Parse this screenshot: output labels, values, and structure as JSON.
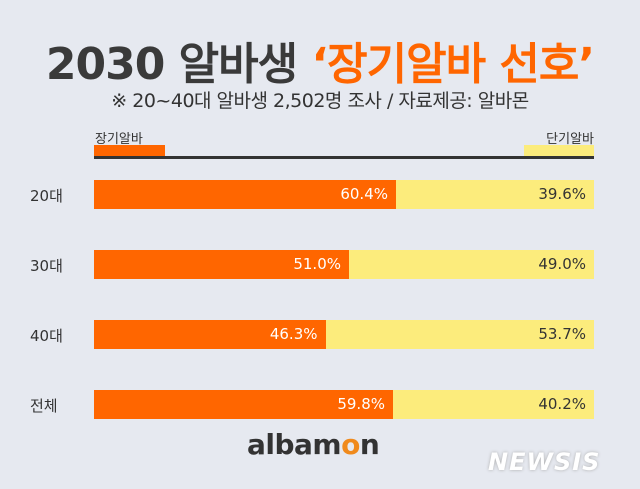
{
  "header": {
    "title_main": "2030 알바생 ",
    "title_highlight": "‘장기알바 선호’",
    "subtitle": "※ 20~40대 알바생 2,502명 조사 / 자료제공: 알바몬"
  },
  "chart_data": {
    "type": "bar",
    "stacked": true,
    "orientation": "horizontal",
    "categories": [
      "20대",
      "30대",
      "40대",
      "전체"
    ],
    "series": [
      {
        "name": "장기알바",
        "color": "#ff6600",
        "values": [
          60.4,
          51.0,
          46.3,
          59.8
        ],
        "labels": [
          "60.4%",
          "51.0%",
          "46.3%",
          "59.8%"
        ]
      },
      {
        "name": "단기알바",
        "color": "#fcec7c",
        "values": [
          39.6,
          49.0,
          53.7,
          40.2
        ],
        "labels": [
          "39.6%",
          "49.0%",
          "53.7%",
          "40.2%"
        ]
      }
    ],
    "xlim": [
      0,
      100
    ],
    "legend": "top"
  },
  "footer": {
    "logo_a": "albam",
    "logo_o": "o",
    "logo_b": "n",
    "watermark": "NEWSIS"
  }
}
